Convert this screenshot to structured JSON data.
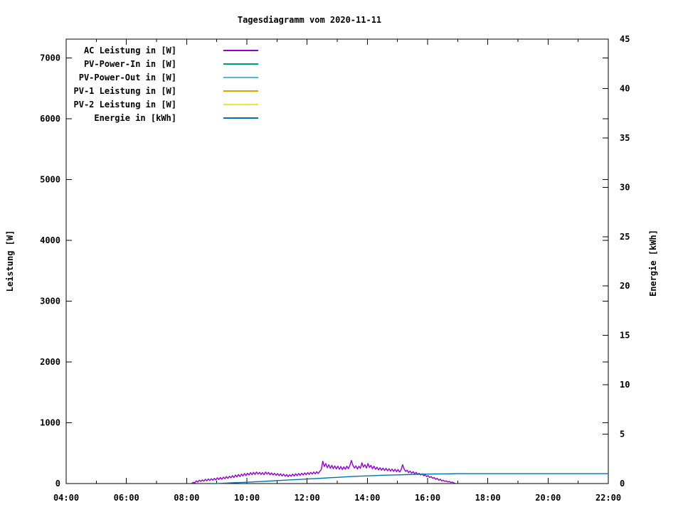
{
  "title": "Tagesdiagramm vom 2020-11-11",
  "colors": {
    "background": "#ffffff",
    "axis": "#000000",
    "text": "#000000"
  },
  "chart_data": {
    "type": "line",
    "title": "Tagesdiagramm vom 2020-11-11",
    "grid": false,
    "legend_position": "top-left-inside",
    "x_axis": {
      "kind": "time-of-day",
      "range_hours": [
        4,
        22
      ],
      "major_tick_hours": [
        4,
        6,
        8,
        10,
        12,
        14,
        16,
        18,
        20,
        22
      ],
      "minor_tick_every_hours": 1,
      "tick_labels": [
        "04:00",
        "06:00",
        "08:00",
        "10:00",
        "12:00",
        "14:00",
        "16:00",
        "18:00",
        "20:00",
        "22:00"
      ]
    },
    "y1_axis": {
      "title": "Leistung [W]",
      "range": [
        0,
        7310
      ],
      "tick_values": [
        0,
        1000,
        2000,
        3000,
        4000,
        5000,
        6000,
        7000
      ],
      "tick_labels": [
        "0",
        "1000",
        "2000",
        "3000",
        "4000",
        "5000",
        "6000",
        "7000"
      ]
    },
    "y2_axis": {
      "title": "Energie [kWh]",
      "range": [
        0,
        45
      ],
      "tick_values": [
        0,
        5,
        10,
        15,
        20,
        25,
        30,
        35,
        40,
        45
      ],
      "tick_labels": [
        "0",
        "5",
        "10",
        "15",
        "20",
        "25",
        "30",
        "35",
        "40",
        "45"
      ]
    },
    "series": [
      {
        "name": "AC Leistung in [W]",
        "color": "#9400d3",
        "axis": "y1",
        "points": [
          [
            8.17,
            4
          ],
          [
            8.22,
            20
          ],
          [
            8.27,
            12
          ],
          [
            8.32,
            45
          ],
          [
            8.37,
            25
          ],
          [
            8.42,
            55
          ],
          [
            8.47,
            35
          ],
          [
            8.52,
            60
          ],
          [
            8.57,
            40
          ],
          [
            8.62,
            70
          ],
          [
            8.67,
            45
          ],
          [
            8.72,
            75
          ],
          [
            8.77,
            50
          ],
          [
            8.82,
            80
          ],
          [
            8.87,
            55
          ],
          [
            8.92,
            85
          ],
          [
            8.97,
            60
          ],
          [
            9.02,
            95
          ],
          [
            9.07,
            65
          ],
          [
            9.12,
            100
          ],
          [
            9.17,
            70
          ],
          [
            9.22,
            105
          ],
          [
            9.27,
            80
          ],
          [
            9.32,
            115
          ],
          [
            9.37,
            85
          ],
          [
            9.42,
            120
          ],
          [
            9.47,
            95
          ],
          [
            9.52,
            130
          ],
          [
            9.57,
            100
          ],
          [
            9.62,
            140
          ],
          [
            9.67,
            110
          ],
          [
            9.72,
            150
          ],
          [
            9.77,
            115
          ],
          [
            9.82,
            155
          ],
          [
            9.87,
            125
          ],
          [
            9.92,
            165
          ],
          [
            9.97,
            130
          ],
          [
            10.02,
            170
          ],
          [
            10.07,
            140
          ],
          [
            10.12,
            180
          ],
          [
            10.17,
            145
          ],
          [
            10.22,
            185
          ],
          [
            10.27,
            150
          ],
          [
            10.32,
            190
          ],
          [
            10.37,
            155
          ],
          [
            10.42,
            185
          ],
          [
            10.47,
            150
          ],
          [
            10.52,
            180
          ],
          [
            10.57,
            145
          ],
          [
            10.62,
            190
          ],
          [
            10.67,
            155
          ],
          [
            10.72,
            185
          ],
          [
            10.77,
            145
          ],
          [
            10.82,
            175
          ],
          [
            10.87,
            140
          ],
          [
            10.92,
            170
          ],
          [
            10.97,
            135
          ],
          [
            11.02,
            165
          ],
          [
            11.07,
            130
          ],
          [
            11.12,
            160
          ],
          [
            11.17,
            125
          ],
          [
            11.22,
            155
          ],
          [
            11.27,
            120
          ],
          [
            11.32,
            150
          ],
          [
            11.37,
            115
          ],
          [
            11.42,
            145
          ],
          [
            11.47,
            120
          ],
          [
            11.52,
            155
          ],
          [
            11.57,
            125
          ],
          [
            11.62,
            160
          ],
          [
            11.67,
            130
          ],
          [
            11.72,
            165
          ],
          [
            11.77,
            135
          ],
          [
            11.82,
            170
          ],
          [
            11.87,
            140
          ],
          [
            11.92,
            175
          ],
          [
            11.97,
            145
          ],
          [
            12.02,
            180
          ],
          [
            12.07,
            150
          ],
          [
            12.12,
            185
          ],
          [
            12.17,
            155
          ],
          [
            12.22,
            190
          ],
          [
            12.27,
            160
          ],
          [
            12.32,
            195
          ],
          [
            12.37,
            165
          ],
          [
            12.42,
            200
          ],
          [
            12.47,
            230
          ],
          [
            12.52,
            370
          ],
          [
            12.57,
            280
          ],
          [
            12.62,
            330
          ],
          [
            12.67,
            260
          ],
          [
            12.72,
            310
          ],
          [
            12.77,
            250
          ],
          [
            12.82,
            300
          ],
          [
            12.87,
            245
          ],
          [
            12.92,
            290
          ],
          [
            12.97,
            240
          ],
          [
            13.02,
            285
          ],
          [
            13.07,
            235
          ],
          [
            13.12,
            280
          ],
          [
            13.17,
            230
          ],
          [
            13.22,
            275
          ],
          [
            13.27,
            235
          ],
          [
            13.32,
            285
          ],
          [
            13.37,
            245
          ],
          [
            13.42,
            300
          ],
          [
            13.47,
            380
          ],
          [
            13.52,
            300
          ],
          [
            13.57,
            255
          ],
          [
            13.62,
            290
          ],
          [
            13.67,
            240
          ],
          [
            13.72,
            285
          ],
          [
            13.77,
            250
          ],
          [
            13.82,
            340
          ],
          [
            13.87,
            270
          ],
          [
            13.92,
            310
          ],
          [
            13.97,
            255
          ],
          [
            14.02,
            330
          ],
          [
            14.07,
            265
          ],
          [
            14.12,
            300
          ],
          [
            14.17,
            245
          ],
          [
            14.22,
            285
          ],
          [
            14.27,
            235
          ],
          [
            14.32,
            270
          ],
          [
            14.37,
            225
          ],
          [
            14.42,
            260
          ],
          [
            14.47,
            220
          ],
          [
            14.52,
            255
          ],
          [
            14.57,
            215
          ],
          [
            14.62,
            250
          ],
          [
            14.67,
            210
          ],
          [
            14.72,
            245
          ],
          [
            14.77,
            205
          ],
          [
            14.82,
            240
          ],
          [
            14.87,
            200
          ],
          [
            14.92,
            235
          ],
          [
            14.97,
            195
          ],
          [
            15.02,
            230
          ],
          [
            15.07,
            190
          ],
          [
            15.12,
            225
          ],
          [
            15.17,
            310
          ],
          [
            15.22,
            240
          ],
          [
            15.27,
            200
          ],
          [
            15.32,
            220
          ],
          [
            15.37,
            180
          ],
          [
            15.42,
            205
          ],
          [
            15.47,
            170
          ],
          [
            15.52,
            195
          ],
          [
            15.57,
            160
          ],
          [
            15.62,
            185
          ],
          [
            15.67,
            150
          ],
          [
            15.72,
            170
          ],
          [
            15.77,
            140
          ],
          [
            15.82,
            160
          ],
          [
            15.87,
            130
          ],
          [
            15.92,
            145
          ],
          [
            15.97,
            115
          ],
          [
            16.02,
            130
          ],
          [
            16.07,
            100
          ],
          [
            16.12,
            115
          ],
          [
            16.17,
            85
          ],
          [
            16.22,
            100
          ],
          [
            16.27,
            70
          ],
          [
            16.32,
            85
          ],
          [
            16.37,
            55
          ],
          [
            16.42,
            70
          ],
          [
            16.47,
            45
          ],
          [
            16.52,
            55
          ],
          [
            16.57,
            35
          ],
          [
            16.62,
            45
          ],
          [
            16.67,
            25
          ],
          [
            16.72,
            35
          ],
          [
            16.77,
            18
          ],
          [
            16.82,
            25
          ],
          [
            16.87,
            10
          ],
          [
            16.92,
            4
          ]
        ]
      },
      {
        "name": "PV-Power-In in [W]",
        "color": "#009e73",
        "axis": "y1",
        "points": []
      },
      {
        "name": "PV-Power-Out in [W]",
        "color": "#56b4e9",
        "axis": "y1",
        "points": []
      },
      {
        "name": "PV-1 Leistung in [W]",
        "color": "#e69f00",
        "axis": "y1",
        "points": []
      },
      {
        "name": "PV-2 Leistung in [W]",
        "color": "#f0e442",
        "axis": "y1",
        "points": []
      },
      {
        "name": "Energie in [kWh]",
        "color": "#0072b2",
        "axis": "y2",
        "points": [
          [
            8.9,
            0.0
          ],
          [
            9.0,
            0.01
          ],
          [
            9.25,
            0.04
          ],
          [
            9.5,
            0.07
          ],
          [
            9.75,
            0.1
          ],
          [
            10.0,
            0.13
          ],
          [
            10.25,
            0.17
          ],
          [
            10.5,
            0.21
          ],
          [
            10.75,
            0.25
          ],
          [
            11.0,
            0.3
          ],
          [
            11.25,
            0.34
          ],
          [
            11.5,
            0.38
          ],
          [
            11.75,
            0.42
          ],
          [
            12.0,
            0.46
          ],
          [
            12.25,
            0.5
          ],
          [
            12.5,
            0.54
          ],
          [
            12.75,
            0.59
          ],
          [
            13.0,
            0.63
          ],
          [
            13.25,
            0.67
          ],
          [
            13.5,
            0.71
          ],
          [
            13.75,
            0.75
          ],
          [
            14.0,
            0.78
          ],
          [
            14.25,
            0.81
          ],
          [
            14.5,
            0.84
          ],
          [
            14.75,
            0.86
          ],
          [
            15.0,
            0.88
          ],
          [
            15.25,
            0.9
          ],
          [
            15.5,
            0.92
          ],
          [
            15.75,
            0.94
          ],
          [
            16.0,
            0.96
          ],
          [
            16.25,
            0.97
          ],
          [
            16.5,
            0.98
          ],
          [
            16.75,
            0.99
          ],
          [
            17.0,
            1.0
          ],
          [
            22.0,
            1.0
          ]
        ]
      }
    ]
  }
}
